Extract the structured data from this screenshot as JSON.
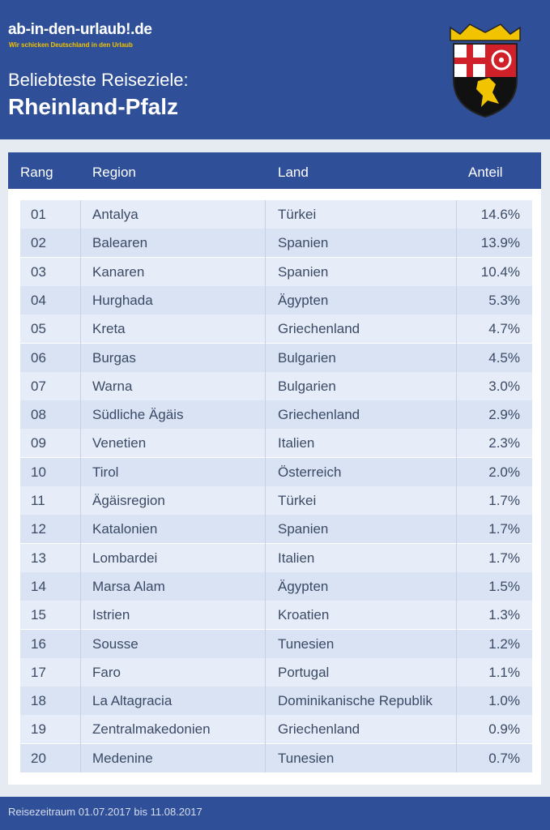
{
  "header": {
    "logo": "ab-in-den-urlaub!.de",
    "tagline": "Wir schicken Deutschland in den Urlaub",
    "subtitle": "Beliebteste Reiseziele:",
    "title": "Rheinland-Pfalz"
  },
  "table": {
    "columns": [
      "Rang",
      "Region",
      "Land",
      "Anteil"
    ],
    "rows": [
      [
        "01",
        "Antalya",
        "Türkei",
        "14.6%"
      ],
      [
        "02",
        "Balearen",
        "Spanien",
        "13.9%"
      ],
      [
        "03",
        "Kanaren",
        "Spanien",
        "10.4%"
      ],
      [
        "04",
        "Hurghada",
        "Ägypten",
        "5.3%"
      ],
      [
        "05",
        "Kreta",
        "Griechenland",
        "4.7%"
      ],
      [
        "06",
        "Burgas",
        "Bulgarien",
        "4.5%"
      ],
      [
        "07",
        "Warna",
        "Bulgarien",
        "3.0%"
      ],
      [
        "08",
        "Südliche Ägäis",
        "Griechenland",
        "2.9%"
      ],
      [
        "09",
        "Venetien",
        "Italien",
        "2.3%"
      ],
      [
        "10",
        "Tirol",
        "Österreich",
        "2.0%"
      ],
      [
        "11",
        "Ägäisregion",
        "Türkei",
        "1.7%"
      ],
      [
        "12",
        "Katalonien",
        "Spanien",
        "1.7%"
      ],
      [
        "13",
        "Lombardei",
        "Italien",
        "1.7%"
      ],
      [
        "14",
        "Marsa Alam",
        "Ägypten",
        "1.5%"
      ],
      [
        "15",
        "Istrien",
        "Kroatien",
        "1.3%"
      ],
      [
        "16",
        "Sousse",
        "Tunesien",
        "1.2%"
      ],
      [
        "17",
        "Faro",
        "Portugal",
        "1.1%"
      ],
      [
        "18",
        "La Altagracia",
        "Dominikanische Republik",
        "1.0%"
      ],
      [
        "19",
        "Zentralmakedonien",
        "Griechenland",
        "0.9%"
      ],
      [
        "20",
        "Medenine",
        "Tunesien",
        "0.7%"
      ]
    ]
  },
  "footer": {
    "text": "Reisezeitraum 01.07.2017 bis 11.08.2017"
  }
}
